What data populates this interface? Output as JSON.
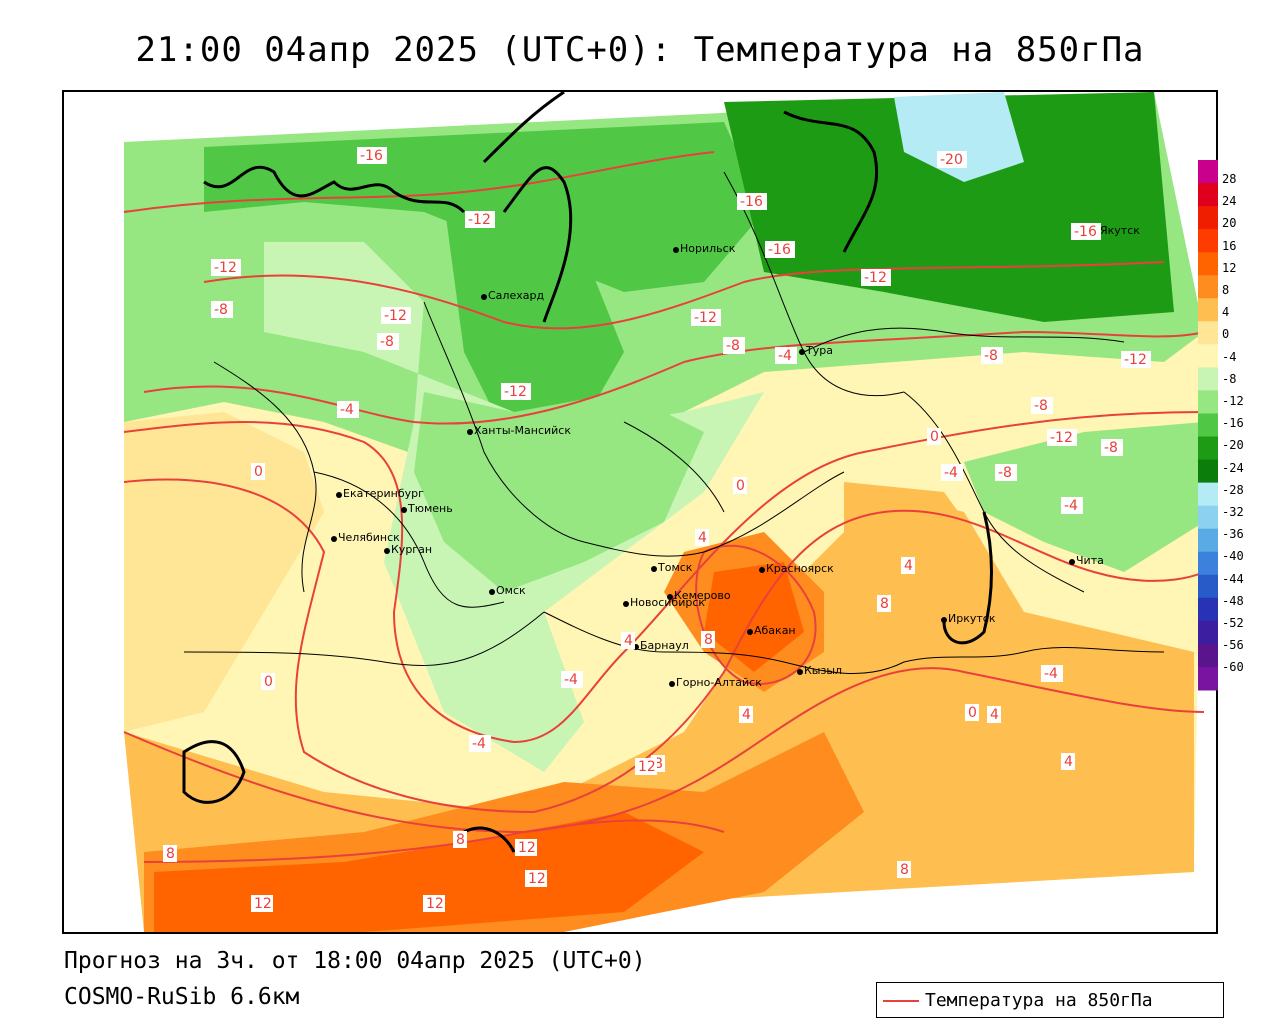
{
  "title": "21:00 04апр 2025 (UTC+0): Температура на 850гПа",
  "footer": {
    "forecast": "Прогноз на 3ч. от 18:00 04апр 2025 (UTC+0)",
    "model": "COSMO-RuSib 6.6км"
  },
  "legend": {
    "label": "Температура на 850гПа",
    "line_color": "#e8413c"
  },
  "colorbar": {
    "ticks": [
      "28",
      "24",
      "20",
      "16",
      "12",
      "8",
      "4",
      "0",
      "-4",
      "-8",
      "-12",
      "-16",
      "-20",
      "-24",
      "-28",
      "-32",
      "-36",
      "-40",
      "-44",
      "-48",
      "-52",
      "-56",
      "-60"
    ],
    "colors": [
      "#c8008c",
      "#e0001e",
      "#f01e00",
      "#ff3c00",
      "#ff6400",
      "#ff8c1e",
      "#ffbe50",
      "#ffe696",
      "#fff5b4",
      "#c8f5b4",
      "#96e682",
      "#50c846",
      "#1e9b14",
      "#0a7d0a",
      "#b4ebf5",
      "#8cd2f0",
      "#5aaae6",
      "#3c82dc",
      "#285ac8",
      "#2832b4",
      "#3c1ea0",
      "#5a148c",
      "#7814a0"
    ]
  },
  "cities": [
    {
      "name": "Норильск"
    },
    {
      "name": "Якутск"
    },
    {
      "name": "Салехард"
    },
    {
      "name": "Тура"
    },
    {
      "name": "Ханты-Мансийск"
    },
    {
      "name": "Екатеринбург"
    },
    {
      "name": "Тюмень"
    },
    {
      "name": "Челябинск"
    },
    {
      "name": "Курган"
    },
    {
      "name": "Омск"
    },
    {
      "name": "Новосибирск"
    },
    {
      "name": "Томск"
    },
    {
      "name": "Кемерово"
    },
    {
      "name": "Красноярск"
    },
    {
      "name": "Барнаул"
    },
    {
      "name": "Абакан"
    },
    {
      "name": "Горно-Алтайск"
    },
    {
      "name": "Кызыл"
    },
    {
      "name": "Иркутск"
    },
    {
      "name": "Чита"
    }
  ],
  "isotherm_labels": [
    {
      "text": "-16"
    },
    {
      "text": "-20"
    },
    {
      "text": "-16"
    },
    {
      "text": "-16"
    },
    {
      "text": "-16"
    },
    {
      "text": "-12"
    },
    {
      "text": "-12"
    },
    {
      "text": "-12"
    },
    {
      "text": "-12"
    },
    {
      "text": "-12"
    },
    {
      "text": "-12"
    },
    {
      "text": "-12"
    },
    {
      "text": "-12"
    },
    {
      "text": "-8"
    },
    {
      "text": "-8"
    },
    {
      "text": "-8"
    },
    {
      "text": "-8"
    },
    {
      "text": "-8"
    },
    {
      "text": "-8"
    },
    {
      "text": "-8"
    },
    {
      "text": "-4"
    },
    {
      "text": "-4"
    },
    {
      "text": "-4"
    },
    {
      "text": "-4"
    },
    {
      "text": "-4"
    },
    {
      "text": "-4"
    },
    {
      "text": "-4"
    },
    {
      "text": "0"
    },
    {
      "text": "0"
    },
    {
      "text": "0"
    },
    {
      "text": "0"
    },
    {
      "text": "0"
    },
    {
      "text": "4"
    },
    {
      "text": "4"
    },
    {
      "text": "4"
    },
    {
      "text": "4"
    },
    {
      "text": "4"
    },
    {
      "text": "4"
    },
    {
      "text": "8"
    },
    {
      "text": "8"
    },
    {
      "text": "8"
    },
    {
      "text": "8"
    },
    {
      "text": "8"
    },
    {
      "text": "8"
    },
    {
      "text": "12"
    },
    {
      "text": "12"
    },
    {
      "text": "12"
    },
    {
      "text": "12"
    },
    {
      "text": "12"
    }
  ]
}
